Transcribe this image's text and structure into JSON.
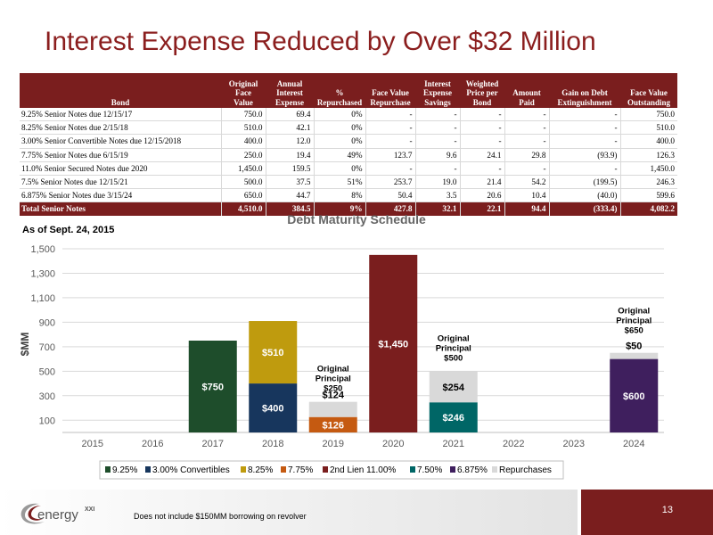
{
  "title": "Interest Expense Reduced by Over $32 Million",
  "table": {
    "headers": [
      [
        "Bond"
      ],
      [
        "Original",
        "Face",
        "Value"
      ],
      [
        "Annual",
        "Interest",
        "Expense"
      ],
      [
        "%",
        "Repurchased"
      ],
      [
        "Face Value",
        "Repurchase"
      ],
      [
        "Interest",
        "Expense",
        "Savings"
      ],
      [
        "Weighted",
        "Price per",
        "Bond"
      ],
      [
        "Amount",
        "Paid"
      ],
      [
        "Gain on Debt",
        "Extinguishment"
      ],
      [
        "Face Value",
        "Outstanding"
      ]
    ],
    "rows": [
      [
        "9.25% Senior Notes due 12/15/17",
        "750.0",
        "69.4",
        "0%",
        "-",
        "-",
        "-",
        "-",
        "-",
        "750.0"
      ],
      [
        "8.25% Senior Notes due 2/15/18",
        "510.0",
        "42.1",
        "0%",
        "-",
        "-",
        "-",
        "-",
        "-",
        "510.0"
      ],
      [
        "3.00% Senior Convertible Notes due 12/15/2018",
        "400.0",
        "12.0",
        "0%",
        "-",
        "-",
        "-",
        "-",
        "-",
        "400.0"
      ],
      [
        "7.75% Senior Notes due 6/15/19",
        "250.0",
        "19.4",
        "49%",
        "123.7",
        "9.6",
        "24.1",
        "29.8",
        "(93.9)",
        "126.3"
      ],
      [
        "11.0% Senior Secured Notes due 2020",
        "1,450.0",
        "159.5",
        "0%",
        "-",
        "-",
        "-",
        "-",
        "-",
        "1,450.0"
      ],
      [
        "7.5% Senior Notes due 12/15/21",
        "500.0",
        "37.5",
        "51%",
        "253.7",
        "19.0",
        "21.4",
        "54.2",
        "(199.5)",
        "246.3"
      ],
      [
        "6.875% Senior Notes due 3/15/24",
        "650.0",
        "44.7",
        "8%",
        "50.4",
        "3.5",
        "20.6",
        "10.4",
        "(40.0)",
        "599.6"
      ]
    ],
    "total": [
      "Total Senior Notes",
      "4,510.0",
      "384.5",
      "9%",
      "427.8",
      "32.1",
      "22.1",
      "94.4",
      "(333.4)",
      "4,082.2"
    ]
  },
  "as_of": "As of Sept. 24, 2015",
  "chart_data": {
    "type": "bar",
    "stacked": true,
    "title": "Debt Maturity Schedule",
    "xlabel": "",
    "ylabel": "$MM",
    "ylim": [
      0,
      1500
    ],
    "yticks": [
      "100",
      "300",
      "500",
      "700",
      "900",
      "1,100",
      "1,300",
      "1,500"
    ],
    "categories": [
      "2015",
      "2016",
      "2017",
      "2018",
      "2019",
      "2020",
      "2021",
      "2022",
      "2023",
      "2024"
    ],
    "grid": true,
    "legend_position": "bottom",
    "series": [
      {
        "name": "9.25%",
        "color": "#1e4d2b",
        "values": [
          0,
          0,
          750,
          0,
          0,
          0,
          0,
          0,
          0,
          0
        ],
        "labels": [
          "",
          "",
          "$750",
          "",
          "",
          "",
          "",
          "",
          "",
          ""
        ]
      },
      {
        "name": "3.00% Convertibles",
        "color": "#17365d",
        "values": [
          0,
          0,
          0,
          400,
          0,
          0,
          0,
          0,
          0,
          0
        ],
        "labels": [
          "",
          "",
          "",
          "$400",
          "",
          "",
          "",
          "",
          "",
          ""
        ]
      },
      {
        "name": "8.25%",
        "color": "#bf9b0e",
        "values": [
          0,
          0,
          0,
          510,
          0,
          0,
          0,
          0,
          0,
          0
        ],
        "labels": [
          "",
          "",
          "",
          "$510",
          "",
          "",
          "",
          "",
          "",
          ""
        ]
      },
      {
        "name": "7.75%",
        "color": "#c55a11",
        "values": [
          0,
          0,
          0,
          0,
          126,
          0,
          0,
          0,
          0,
          0
        ],
        "labels": [
          "",
          "",
          "",
          "",
          "$126",
          "",
          "",
          "",
          "",
          ""
        ]
      },
      {
        "name": "2nd Lien 11.00%",
        "color": "#7a1e1e",
        "values": [
          0,
          0,
          0,
          0,
          0,
          1450,
          0,
          0,
          0,
          0
        ],
        "labels": [
          "",
          "",
          "",
          "",
          "",
          "$1,450",
          "",
          "",
          "",
          ""
        ]
      },
      {
        "name": "7.50%",
        "color": "#006666",
        "values": [
          0,
          0,
          0,
          0,
          0,
          0,
          246,
          0,
          0,
          0
        ],
        "labels": [
          "",
          "",
          "",
          "",
          "",
          "",
          "$246",
          "",
          "",
          ""
        ]
      },
      {
        "name": "6.875%",
        "color": "#3f1f5e",
        "values": [
          0,
          0,
          0,
          0,
          0,
          0,
          0,
          0,
          0,
          600
        ],
        "labels": [
          "",
          "",
          "",
          "",
          "",
          "",
          "",
          "",
          "",
          "$600"
        ]
      },
      {
        "name": "Repurchases",
        "color": "#d9d9d9",
        "values": [
          0,
          0,
          0,
          0,
          124,
          0,
          254,
          0,
          0,
          50
        ],
        "labels": [
          "",
          "",
          "",
          "",
          "$124",
          "",
          "$254",
          "",
          "",
          "$50"
        ]
      }
    ],
    "annotations": [
      {
        "category": "2019",
        "lines": [
          "Original",
          "Principal",
          "$250"
        ]
      },
      {
        "category": "2021",
        "lines": [
          "Original",
          "Principal",
          "$500"
        ]
      },
      {
        "category": "2024",
        "lines": [
          "Original",
          "Principal",
          "$650"
        ]
      }
    ]
  },
  "footer": {
    "logo_text": "energy",
    "logo_suffix": "XXI",
    "note": "Does not include $150MM borrowing on revolver",
    "page_number": "13"
  }
}
